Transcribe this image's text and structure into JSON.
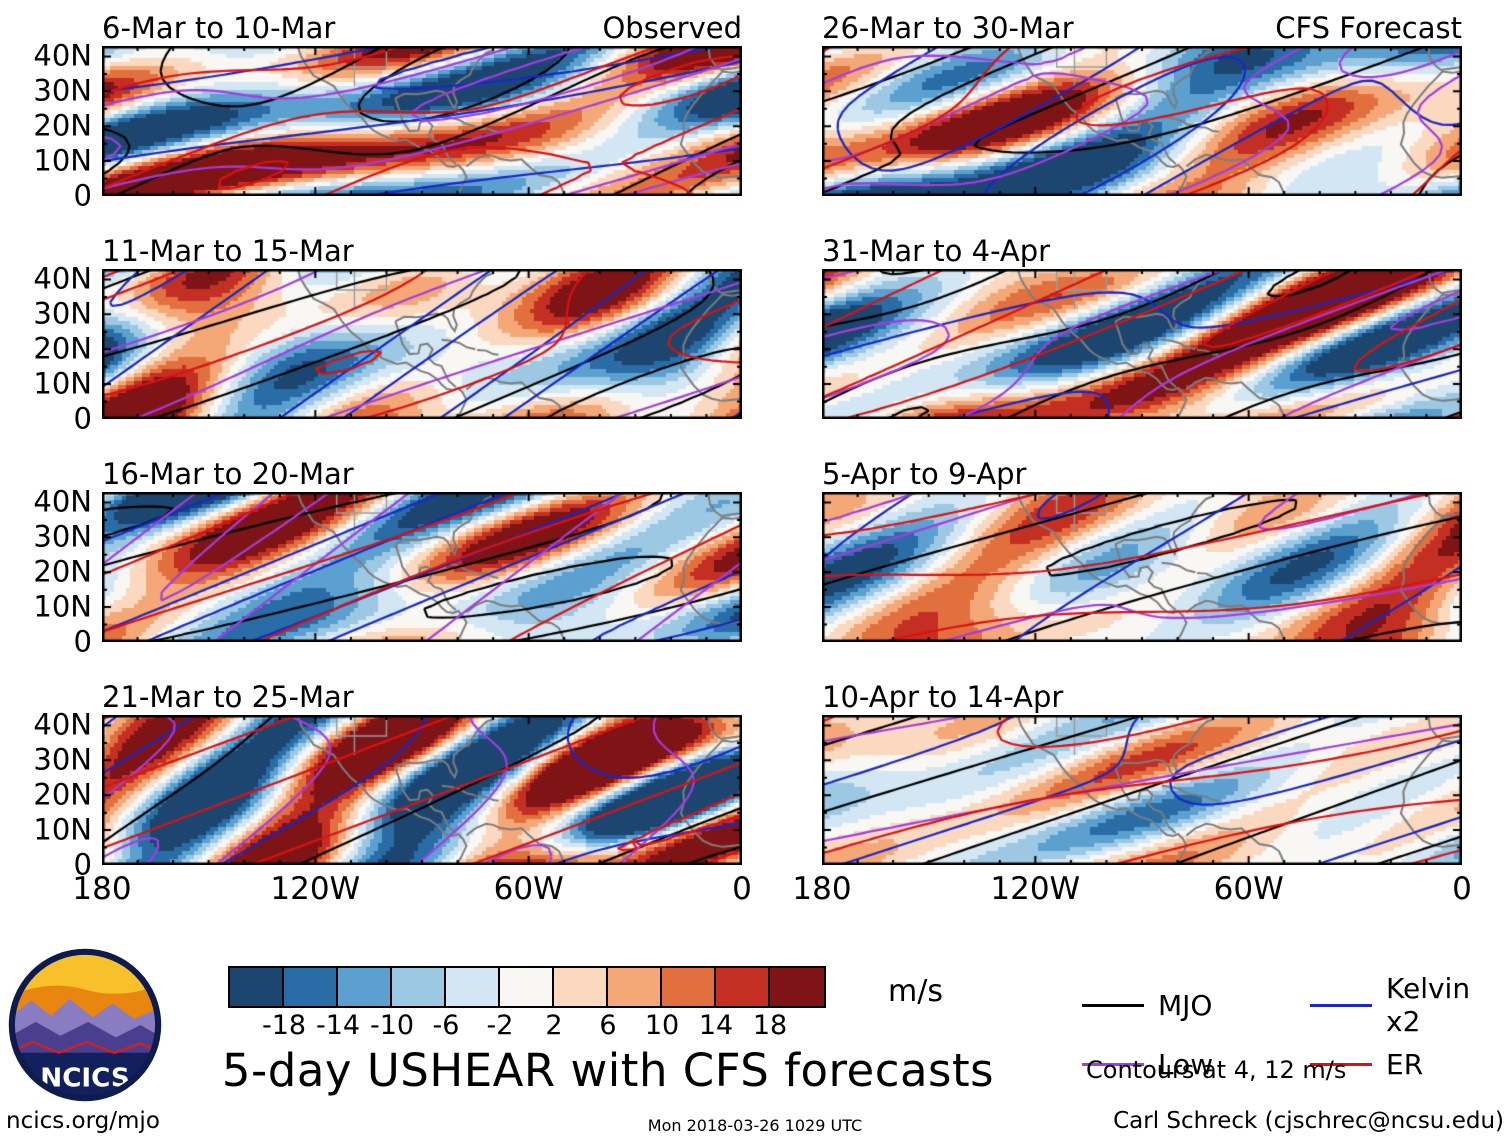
{
  "figure": {
    "title": "5-day USHEAR with CFS forecasts",
    "timestamp": "Mon 2018-03-26 1029 UTC",
    "footer_left": "ncics.org/mjo",
    "footer_right": "Carl Schreck (cjschrec@ncsu.edu)",
    "logo_text": "NCICS"
  },
  "axes": {
    "lat_max": 43,
    "y_ticks": [
      {
        "label": "40N",
        "lat": 40
      },
      {
        "label": "30N",
        "lat": 30
      },
      {
        "label": "20N",
        "lat": 20
      },
      {
        "label": "10N",
        "lat": 10
      },
      {
        "label": "0",
        "lat": 0
      }
    ],
    "x_ticks": [
      {
        "label": "180",
        "frac": 0
      },
      {
        "label": "120W",
        "frac": 0.3333
      },
      {
        "label": "60W",
        "frac": 0.6667
      },
      {
        "label": "0",
        "frac": 1
      }
    ]
  },
  "colorbar": {
    "unit": "m/s",
    "ticks": [
      "-18",
      "-14",
      "-10",
      "-6",
      "-2",
      "2",
      "6",
      "10",
      "14",
      "18"
    ],
    "colors": [
      "#1c4670",
      "#2a6ca6",
      "#5ba0cf",
      "#9cc8e4",
      "#d3e6f3",
      "#f8f7f4",
      "#fbd9c0",
      "#f4a878",
      "#e2703f",
      "#c42f24",
      "#7e1416"
    ]
  },
  "legend": {
    "items": [
      {
        "label": "MJO",
        "color": "#000000"
      },
      {
        "label": "Kelvin x2",
        "color": "#1827c8"
      },
      {
        "label": "Low",
        "color": "#a33de0"
      },
      {
        "label": "ER",
        "color": "#dd1111"
      }
    ],
    "note": "Contours at 4, 12 m/s"
  },
  "panels": [
    {
      "title": "6-Mar to 10-Mar",
      "corner": "Observed",
      "col": 0
    },
    {
      "title": "11-Mar to 15-Mar",
      "corner": "",
      "col": 0
    },
    {
      "title": "16-Mar to 20-Mar",
      "corner": "",
      "col": 0
    },
    {
      "title": "21-Mar to 25-Mar",
      "corner": "",
      "col": 0
    },
    {
      "title": "26-Mar to 30-Mar",
      "corner": "CFS Forecast",
      "col": 1
    },
    {
      "title": "31-Mar to 4-Apr",
      "corner": "",
      "col": 1
    },
    {
      "title": "5-Apr to 9-Apr",
      "corner": "",
      "col": 1
    },
    {
      "title": "10-Apr to 14-Apr",
      "corner": "",
      "col": 1
    }
  ],
  "chart_data": {
    "type": "heatmap",
    "title": "5-day USHEAR with CFS forecasts",
    "quantity": "USHEAR anomaly",
    "unit": "m/s",
    "color_levels": [
      -18,
      -14,
      -10,
      -6,
      -2,
      2,
      6,
      10,
      14,
      18
    ],
    "x_axis": {
      "tick_labels": [
        "180",
        "120W",
        "60W",
        "0"
      ],
      "range_deg_lon_west": [
        180,
        0
      ]
    },
    "y_axis": {
      "tick_labels": [
        "0",
        "10N",
        "20N",
        "30N",
        "40N"
      ],
      "range_deg_lat_north": [
        0,
        43
      ]
    },
    "columns": [
      {
        "header": "Observed"
      },
      {
        "header": "CFS Forecast"
      }
    ],
    "panels": [
      {
        "period": "6-Mar to 10-Mar",
        "source": "Observed"
      },
      {
        "period": "11-Mar to 15-Mar",
        "source": "Observed"
      },
      {
        "period": "16-Mar to 20-Mar",
        "source": "Observed"
      },
      {
        "period": "21-Mar to 25-Mar",
        "source": "Observed"
      },
      {
        "period": "26-Mar to 30-Mar",
        "source": "CFS Forecast"
      },
      {
        "period": "31-Mar to 4-Apr",
        "source": "CFS Forecast"
      },
      {
        "period": "5-Apr to 9-Apr",
        "source": "CFS Forecast"
      },
      {
        "period": "10-Apr to 14-Apr",
        "source": "CFS Forecast"
      }
    ],
    "contours": {
      "levels_ms": [
        4,
        12
      ],
      "series": [
        "MJO",
        "Low",
        "Kelvin x2",
        "ER"
      ]
    },
    "generated_on": "Mon 2018-03-26 1029 UTC"
  }
}
